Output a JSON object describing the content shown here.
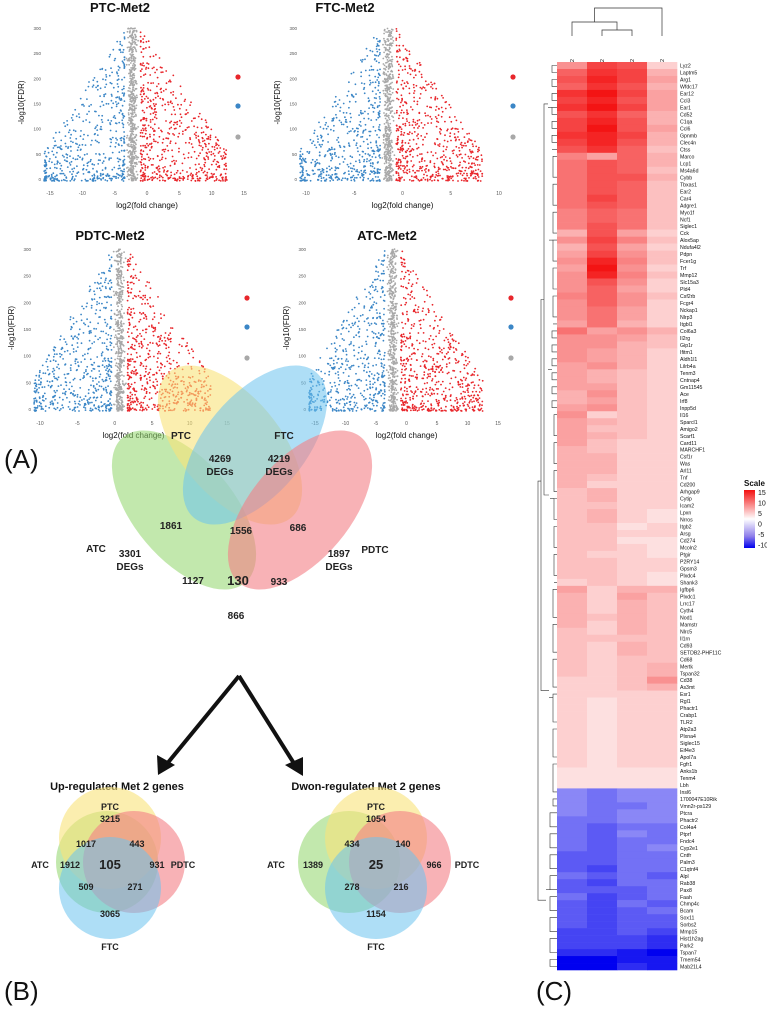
{
  "panels": {
    "A": "(A)",
    "B": "(B)",
    "C": "(C)"
  },
  "volcano": [
    {
      "title": "PTC-Met2",
      "xlabel": "log2(fold change)",
      "ylabel": "-log10(FDR)",
      "xticks": [
        "-15",
        "-10",
        "-5",
        "0",
        "5",
        "10",
        "15"
      ],
      "yticks": [
        "0",
        "50",
        "100",
        "150",
        "200",
        "250",
        "300"
      ]
    },
    {
      "title": "FTC-Met2",
      "xlabel": "log2(fold change)",
      "ylabel": "-log10(FDR)",
      "xticks": [
        "-10",
        "-5",
        "0",
        "5",
        "10"
      ],
      "yticks": [
        "0",
        "50",
        "100",
        "150",
        "200",
        "250",
        "300"
      ]
    },
    {
      "title": "PDTC-Met2",
      "xlabel": "log2(fold change)",
      "ylabel": "-log10(FDR)",
      "xticks": [
        "-10",
        "-5",
        "0",
        "5",
        "10",
        "15"
      ],
      "yticks": [
        "0",
        "50",
        "100",
        "150",
        "200",
        "250",
        "300"
      ]
    },
    {
      "title": "ATC-Met2",
      "xlabel": "log2(fold change)",
      "ylabel": "-log10(FDR)",
      "xticks": [
        "-15",
        "-10",
        "-5",
        "0",
        "5",
        "10",
        "15"
      ],
      "yticks": [
        "0",
        "50",
        "100",
        "150",
        "200",
        "250",
        "300"
      ]
    }
  ],
  "legend_colors": {
    "up": "#e8262b",
    "down": "#3b86c6",
    "ns": "#a8a8a8"
  },
  "venn4": {
    "labels": {
      "PTC": "PTC",
      "FTC": "FTC",
      "ATC": "ATC",
      "PDTC": "PDTC"
    },
    "deg_word": "DEGs",
    "totals": {
      "PTC": "4269",
      "FTC": "4219",
      "ATC": "3301",
      "PDTC": "1897"
    },
    "regions": {
      "atc_ptc": "1861",
      "ptc_ftc": "1556",
      "ftc_pdtc": "686",
      "atc_ftc": "1127",
      "all": "130",
      "ptc_ftc_pdtc": "933",
      "atc_pdtc": "866"
    },
    "colors": {
      "PTC": "#f9e27a",
      "FTC": "#6cc3ee",
      "ATC": "#8fd66a",
      "PDTC": "#f37f85"
    }
  },
  "venn_up": {
    "title": "Up-regulated Met 2 genes",
    "labels": {
      "PTC": "PTC",
      "FTC": "FTC",
      "ATC": "ATC",
      "PDTC": "PDTC"
    },
    "values": {
      "ptc": "3215",
      "atc": "1912",
      "pdtc": "931",
      "ftc": "3065",
      "atc_ptc": "1017",
      "ptc_pdtc": "443",
      "center": "105",
      "atc_ftc": "509",
      "ftc_pdtc": "271"
    }
  },
  "venn_down": {
    "title": "Dwon-regulated Met 2 genes",
    "labels": {
      "PTC": "PTC",
      "FTC": "FTC",
      "ATC": "ATC",
      "PDTC": "PDTC"
    },
    "values": {
      "ptc": "1054",
      "atc": "1389",
      "pdtc": "966",
      "ftc": "1154",
      "atc_ptc": "434",
      "ptc_pdtc": "140",
      "center": "25",
      "atc_ftc": "278",
      "ftc_pdtc": "216"
    }
  },
  "chart_data": {
    "type": "heatmap",
    "title": "",
    "columns": [
      "PTC-Met2",
      "ATC-Met2",
      "PDTC-Met2",
      "FTC-Met2"
    ],
    "scale_title": "Scale",
    "scale_ticks": [
      "15",
      "10",
      "5",
      "0",
      "-5",
      "-10"
    ],
    "scale_range": [
      -10,
      15
    ],
    "rows": [
      "Lyz2",
      "Laptm5",
      "Arg1",
      "Wfdc17",
      "Ear12",
      "Ccl3",
      "Ear1",
      "Cd52",
      "C1qa",
      "Ccl6",
      "Gpnmb",
      "Clec4n",
      "Ctss",
      "Marco",
      "Lcp1",
      "Ms4a6d",
      "Cybb",
      "Tbxas1",
      "Ear2",
      "Car4",
      "Adgre1",
      "Myo1f",
      "Ncf1",
      "Siglec1",
      "Cck",
      "Alox5ap",
      "Ndufa4l2",
      "Pdpn",
      "Fcer1g",
      "Trf",
      "Mmp12",
      "Slc15a3",
      "Pld4",
      "Csf2rb",
      "Fcgr4",
      "Nckap1",
      "Nlrp3",
      "Itgbl1",
      "Col6a3",
      "Il2rg",
      "Gip1r",
      "Ifitm1",
      "Aldh1l1",
      "Lilrb4a",
      "Tenm3",
      "Cntnap4",
      "Gm11545",
      "Ace",
      "Irf8",
      "Inpp5d",
      "Il16",
      "Sparcl1",
      "Amigo2",
      "Scarf1",
      "Card11",
      "MARCHF1",
      "Csf1r",
      "Was",
      "Arl11",
      "Tnf",
      "Cd200",
      "Arhgap9",
      "Cytip",
      "Icam2",
      "Lpxn",
      "Nrros",
      "Itgb2",
      "Arsg",
      "Cd274",
      "Mcoln2",
      "Ptgir",
      "P2RY14",
      "Gpsm3",
      "Plxdc4",
      "Shank3",
      "Igfbp6",
      "Plxdc1",
      "Lrrc17",
      "Cyth4",
      "Nod1",
      "Mamstr",
      "Nlrc5",
      "Il1rn",
      "Cd93",
      "SETDB2-PHF11C",
      "Cd68",
      "Mertk",
      "Tspan32",
      "Cd38",
      "As3mt",
      "Esr1",
      "Rgl1",
      "Phactr1",
      "Crabp1",
      "TLR2",
      "Atp2a3",
      "Plxna4",
      "Siglec15",
      "Eif4e3",
      "Apol7a",
      "Fgfr1",
      "Anks1b",
      "Tenm4",
      "Lbh",
      "Insl6",
      "1700047E10Rik",
      "Vmn2r-ps129",
      "Ptcra",
      "Phactr2",
      "Col4a4",
      "Ptprf",
      "Fndc4",
      "Cyp2e1",
      "Cntfr",
      "Palm3",
      "C1qtnf4",
      "Alpl",
      "Rab38",
      "Pax8",
      "Faah",
      "Chmp4c",
      "Bcam",
      "Sox11",
      "Sorbs2",
      "Mmp15",
      "Hist1h2ag",
      "Park2",
      "Tspan7",
      "Tmem54",
      "Mab21L4"
    ],
    "values": [
      [
        7,
        12,
        11,
        3
      ],
      [
        10,
        13,
        12,
        5
      ],
      [
        11,
        14,
        12,
        6
      ],
      [
        10,
        13,
        11,
        5
      ],
      [
        13,
        15,
        12,
        6
      ],
      [
        12,
        14,
        11,
        6
      ],
      [
        13,
        15,
        12,
        6
      ],
      [
        11,
        13,
        10,
        5
      ],
      [
        12,
        14,
        11,
        5
      ],
      [
        12,
        15,
        11,
        6
      ],
      [
        13,
        14,
        12,
        5
      ],
      [
        12,
        14,
        11,
        5
      ],
      [
        11,
        13,
        10,
        4
      ],
      [
        8,
        6,
        10,
        5
      ],
      [
        9,
        11,
        10,
        5
      ],
      [
        9,
        11,
        10,
        4
      ],
      [
        9,
        11,
        11,
        5
      ],
      [
        9,
        11,
        10,
        4
      ],
      [
        9,
        11,
        10,
        4
      ],
      [
        9,
        12,
        10,
        4
      ],
      [
        9,
        11,
        10,
        4
      ],
      [
        8,
        10,
        9,
        4
      ],
      [
        8,
        10,
        9,
        4
      ],
      [
        8,
        11,
        9,
        4
      ],
      [
        5,
        11,
        6,
        3
      ],
      [
        7,
        12,
        8,
        4
      ],
      [
        5,
        11,
        6,
        3
      ],
      [
        6,
        12,
        7,
        4
      ],
      [
        7,
        14,
        8,
        4
      ],
      [
        6,
        15,
        7,
        3
      ],
      [
        7,
        14,
        8,
        4
      ],
      [
        7,
        11,
        7,
        3
      ],
      [
        7,
        10,
        6,
        3
      ],
      [
        8,
        10,
        7,
        4
      ],
      [
        7,
        10,
        7,
        3
      ],
      [
        7,
        9,
        6,
        3
      ],
      [
        7,
        9,
        6,
        3
      ],
      [
        6,
        9,
        5,
        3
      ],
      [
        9,
        6,
        7,
        5
      ],
      [
        7,
        7,
        6,
        4
      ],
      [
        7,
        7,
        5,
        4
      ],
      [
        7,
        6,
        5,
        3
      ],
      [
        7,
        6,
        5,
        3
      ],
      [
        6,
        7,
        5,
        3
      ],
      [
        6,
        5,
        4,
        3
      ],
      [
        6,
        5,
        4,
        3
      ],
      [
        6,
        6,
        4,
        3
      ],
      [
        5,
        7,
        4,
        3
      ],
      [
        5,
        6,
        4,
        3
      ],
      [
        6,
        7,
        4,
        3
      ],
      [
        7,
        3,
        4,
        3
      ],
      [
        6,
        5,
        4,
        3
      ],
      [
        6,
        4,
        4,
        3
      ],
      [
        6,
        5,
        4,
        3
      ],
      [
        6,
        4,
        3,
        3
      ],
      [
        5,
        4,
        3,
        3
      ],
      [
        5,
        5,
        3,
        3
      ],
      [
        5,
        5,
        3,
        3
      ],
      [
        5,
        5,
        3,
        3
      ],
      [
        5,
        4,
        3,
        3
      ],
      [
        5,
        3,
        3,
        3
      ],
      [
        4,
        5,
        3,
        3
      ],
      [
        4,
        5,
        3,
        3
      ],
      [
        4,
        4,
        3,
        3
      ],
      [
        4,
        5,
        3,
        2
      ],
      [
        4,
        5,
        3,
        2
      ],
      [
        4,
        4,
        2,
        3
      ],
      [
        4,
        4,
        3,
        3
      ],
      [
        4,
        4,
        2,
        2
      ],
      [
        4,
        4,
        3,
        2
      ],
      [
        4,
        3,
        3,
        2
      ],
      [
        4,
        4,
        3,
        3
      ],
      [
        4,
        4,
        3,
        3
      ],
      [
        4,
        4,
        3,
        2
      ],
      [
        3,
        4,
        3,
        2
      ],
      [
        6,
        3,
        5,
        5
      ],
      [
        5,
        3,
        6,
        4
      ],
      [
        5,
        3,
        5,
        4
      ],
      [
        5,
        3,
        5,
        4
      ],
      [
        5,
        4,
        5,
        4
      ],
      [
        5,
        3,
        5,
        4
      ],
      [
        4,
        3,
        5,
        4
      ],
      [
        4,
        4,
        4,
        4
      ],
      [
        4,
        3,
        5,
        4
      ],
      [
        4,
        3,
        5,
        4
      ],
      [
        4,
        3,
        4,
        4
      ],
      [
        4,
        3,
        4,
        5
      ],
      [
        4,
        3,
        4,
        5
      ],
      [
        3,
        3,
        4,
        7
      ],
      [
        3,
        3,
        4,
        5
      ],
      [
        3,
        3,
        3,
        3
      ],
      [
        3,
        2,
        3,
        3
      ],
      [
        3,
        2,
        3,
        3
      ],
      [
        3,
        2,
        3,
        3
      ],
      [
        3,
        2,
        3,
        3
      ],
      [
        3,
        2,
        3,
        3
      ],
      [
        3,
        2,
        3,
        3
      ],
      [
        3,
        2,
        3,
        3
      ],
      [
        3,
        2,
        3,
        3
      ],
      [
        3,
        2,
        3,
        3
      ],
      [
        3,
        2,
        3,
        3
      ],
      [
        2,
        2,
        2,
        2
      ],
      [
        2,
        2,
        2,
        2
      ],
      [
        2,
        2,
        2,
        2
      ],
      [
        -4,
        -5,
        -4,
        -4
      ],
      [
        -4,
        -5,
        -4,
        -4
      ],
      [
        -4,
        -5,
        -5,
        -4
      ],
      [
        -4,
        -5,
        -4,
        -4
      ],
      [
        -5,
        -5,
        -4,
        -4
      ],
      [
        -5,
        -6,
        -5,
        -5
      ],
      [
        -5,
        -6,
        -4,
        -5
      ],
      [
        -5,
        -6,
        -5,
        -5
      ],
      [
        -5,
        -6,
        -5,
        -4
      ],
      [
        -6,
        -6,
        -5,
        -5
      ],
      [
        -6,
        -6,
        -5,
        -5
      ],
      [
        -6,
        -7,
        -5,
        -5
      ],
      [
        -5,
        -6,
        -5,
        -6
      ],
      [
        -6,
        -7,
        -5,
        -5
      ],
      [
        -6,
        -6,
        -6,
        -5
      ],
      [
        -5,
        -7,
        -6,
        -5
      ],
      [
        -6,
        -7,
        -5,
        -6
      ],
      [
        -6,
        -7,
        -6,
        -5
      ],
      [
        -6,
        -7,
        -6,
        -6
      ],
      [
        -6,
        -7,
        -6,
        -6
      ],
      [
        -7,
        -7,
        -6,
        -7
      ],
      [
        -7,
        -7,
        -7,
        -8
      ],
      [
        -7,
        -7,
        -7,
        -8
      ],
      [
        -8,
        -8,
        -9,
        -10
      ],
      [
        -10,
        -10,
        -9,
        -9
      ],
      [
        -10,
        -10,
        -8,
        -9
      ]
    ]
  }
}
